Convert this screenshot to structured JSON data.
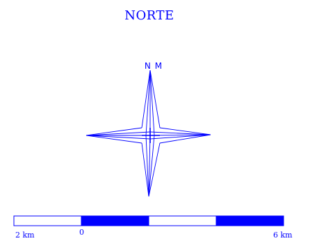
{
  "map": {
    "title": "NORTE",
    "north_label": "N M",
    "accent_color": "#0000ff",
    "background_color": "#ffffff",
    "compass_icon": "compass-rose-icon",
    "scale_bar": {
      "left_label": "2 km",
      "zero_label": "0",
      "right_label": "6 km",
      "segments": [
        {
          "fill": "white"
        },
        {
          "fill": "blue"
        },
        {
          "fill": "white"
        },
        {
          "fill": "blue"
        }
      ]
    }
  }
}
